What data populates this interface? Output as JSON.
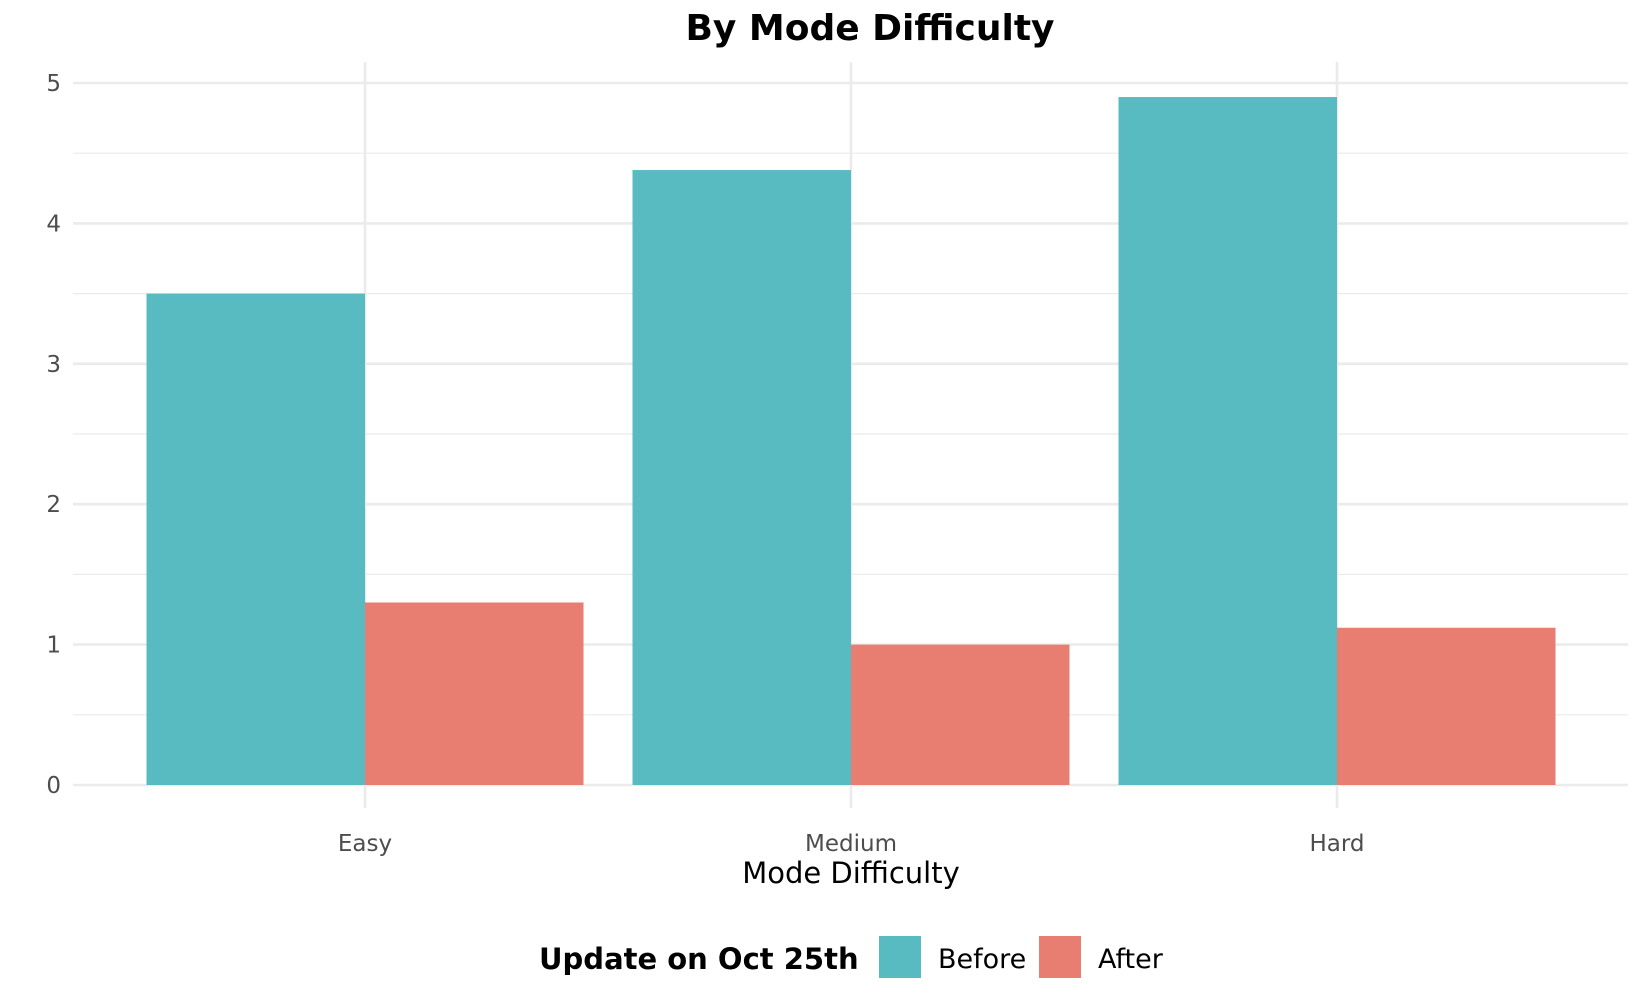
{
  "chart_data": {
    "type": "bar",
    "title": "By Mode Difficulty",
    "xlabel": "Mode Difficulty",
    "ylabel": "",
    "categories": [
      "Easy",
      "Medium",
      "Hard"
    ],
    "series": [
      {
        "name": "Before",
        "values": [
          3.5,
          4.38,
          4.9
        ],
        "color": "#57BBC1"
      },
      {
        "name": "After",
        "values": [
          1.3,
          1.0,
          1.12
        ],
        "color": "#E87D72"
      }
    ],
    "ylim": [
      0,
      5.15
    ],
    "yticks": [
      0,
      1,
      2,
      3,
      4,
      5
    ],
    "grid": true,
    "legend": {
      "title": "Update on Oct 25th",
      "position": "bottom"
    }
  }
}
